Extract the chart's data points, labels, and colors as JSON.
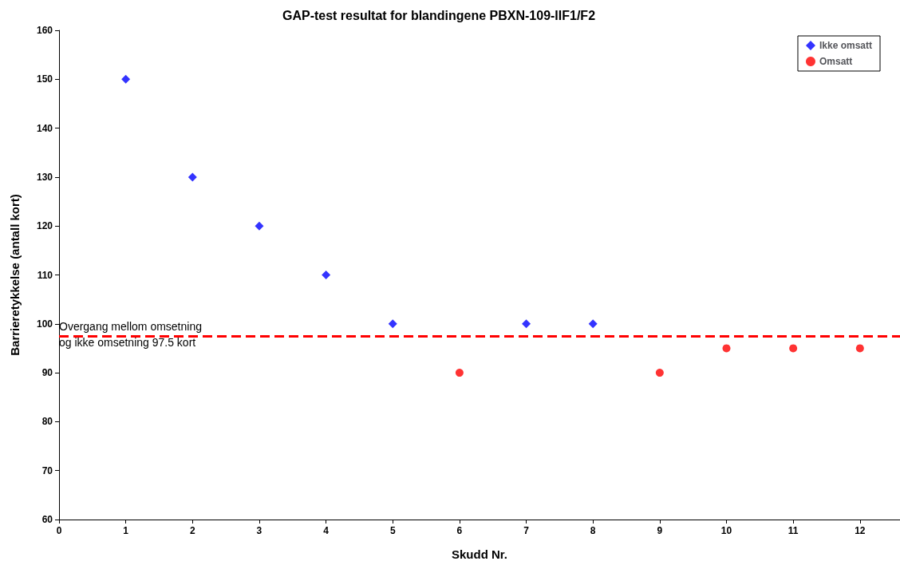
{
  "chart_data": {
    "type": "scatter",
    "title": "GAP-test resultat for blandingene PBXN-109-IIF1/F2",
    "xlabel": "Skudd Nr.",
    "ylabel": "Barrieretykkelse (antall kort)",
    "series": [
      {
        "name": "Ikke omsatt",
        "color": "#0000ff",
        "marker": "diamond",
        "x": [
          1,
          2,
          3,
          4,
          5,
          7,
          8
        ],
        "values": [
          150,
          130,
          120,
          110,
          100,
          100,
          100
        ]
      },
      {
        "name": "Omsatt",
        "color": "#ff0000",
        "marker": "circle",
        "x": [
          6,
          9,
          10,
          11,
          12
        ],
        "values": [
          90,
          90,
          95,
          95,
          95
        ]
      }
    ],
    "xlim": [
      0,
      12.6
    ],
    "xticks": [
      0,
      1,
      2,
      3,
      4,
      5,
      6,
      7,
      8,
      9,
      10,
      11,
      12
    ],
    "ylim": [
      60,
      160
    ],
    "yticks": [
      60,
      70,
      80,
      90,
      100,
      110,
      120,
      130,
      140,
      150,
      160
    ],
    "ref_lines": [
      {
        "axis": "y",
        "value": 97.5,
        "label": "Overgang mellom omsetning\nog ikke omsetning 97.5 kort",
        "color": "#ff0000",
        "line_style": "dashed"
      }
    ],
    "grid": false,
    "legend": "top right"
  }
}
